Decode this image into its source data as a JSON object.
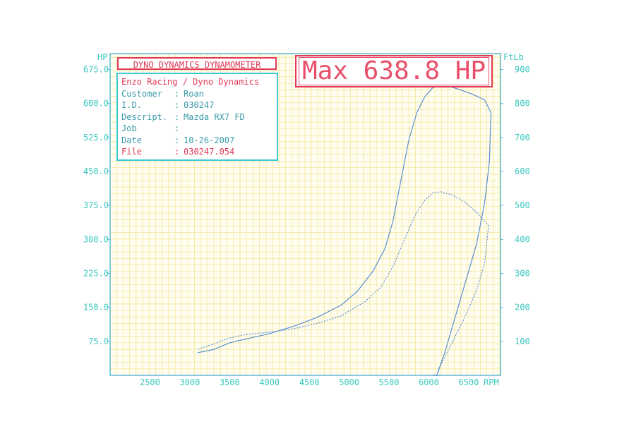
{
  "header": {
    "title": "DYNO DYNAMICS DYNAMOMETER",
    "max_label": "Max 638.8 HP"
  },
  "info": {
    "company": "Enzo Racing / Dyno Dynamics",
    "rows": [
      {
        "label": "Customer",
        "sep": ":",
        "value": "Roan"
      },
      {
        "label": "I.D.",
        "sep": ":",
        "value": "030247"
      },
      {
        "label": "Descript.",
        "sep": ":",
        "value": "Mazda RX7 FD"
      },
      {
        "label": "Job",
        "sep": ":",
        "value": ""
      },
      {
        "label": "Date",
        "sep": ":",
        "value": "10-26-2007"
      },
      {
        "label": "File",
        "sep": ":",
        "value": "030247.054"
      }
    ]
  },
  "colors": {
    "teal": "#3cc8be",
    "red": "#e23a55",
    "grid_yellow": "#f2e79a",
    "axis": "#5ab8d2",
    "curve": "#5a8fd0"
  },
  "chart_data": {
    "type": "line",
    "left_axis_unit": "HP",
    "right_axis_unit": "FtLb",
    "x_unit": "RPM",
    "x_ticks": [
      2500,
      3000,
      3500,
      4000,
      4500,
      5000,
      5500,
      6000,
      6500
    ],
    "x_tick_labels": [
      "2500",
      "3000",
      "3500",
      "4000",
      "4500",
      "5000",
      "5500",
      "6000",
      "6500"
    ],
    "xlim": [
      2000,
      6900
    ],
    "y_left_ticks": [
      75,
      150,
      225,
      300,
      375,
      450,
      525,
      600,
      675
    ],
    "y_left_tick_labels": [
      "75.0",
      "150.0",
      "225.0",
      "300.0",
      "375.0",
      "450.0",
      "525.0",
      "600.0",
      "675.0"
    ],
    "ylim_left": [
      0,
      710
    ],
    "y_right_ticks": [
      100,
      200,
      300,
      400,
      500,
      600,
      700,
      800,
      900
    ],
    "y_right_tick_labels": [
      "100",
      "200",
      "300",
      "400",
      "500",
      "600",
      "700",
      "800",
      "900"
    ],
    "ylim_right": [
      0,
      946.7
    ],
    "grid": true,
    "series": [
      {
        "style": "solid",
        "axis": "left",
        "x": [
          3100,
          3300,
          3500,
          3700,
          4000,
          4300,
          4600,
          4900,
          5100,
          5300,
          5450,
          5550,
          5650,
          5750,
          5850,
          5950,
          6050,
          6150,
          6250,
          6400,
          6550,
          6700,
          6780,
          6760,
          6700,
          6600,
          6500,
          6400,
          6300,
          6200,
          6100,
          6050
        ],
        "y": [
          50,
          57,
          72,
          80,
          92,
          108,
          128,
          155,
          185,
          230,
          280,
          340,
          430,
          520,
          580,
          615,
          635,
          640,
          638,
          630,
          620,
          608,
          580,
          470,
          380,
          290,
          230,
          170,
          110,
          50,
          0,
          0
        ]
      },
      {
        "style": "dotted",
        "axis": "right",
        "x": [
          3100,
          3300,
          3500,
          3700,
          4000,
          4300,
          4600,
          4900,
          5200,
          5400,
          5550,
          5650,
          5750,
          5850,
          5950,
          6050,
          6150,
          6300,
          6450,
          6600,
          6750,
          6700,
          6600,
          6450,
          6300,
          6150,
          6100
        ],
        "y": [
          77,
          92,
          110,
          120,
          127,
          137,
          153,
          175,
          217,
          260,
          320,
          375,
          430,
          480,
          515,
          537,
          540,
          530,
          510,
          480,
          440,
          330,
          250,
          170,
          100,
          30,
          0
        ]
      }
    ]
  }
}
